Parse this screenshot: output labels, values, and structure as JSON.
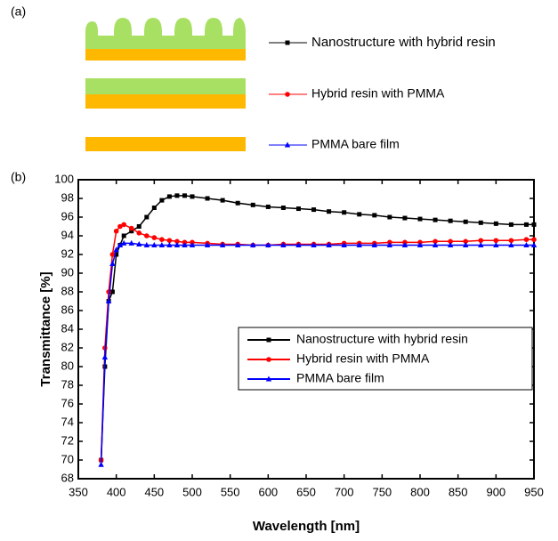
{
  "panel_labels": [
    "(a)",
    "(b)"
  ],
  "chart_data": {
    "type": "line",
    "xlabel": "Wavelength [nm]",
    "ylabel": "Transmittance [%]",
    "x": [
      380,
      385,
      390,
      395,
      400,
      405,
      410,
      420,
      430,
      440,
      450,
      460,
      470,
      480,
      490,
      500,
      520,
      540,
      560,
      580,
      600,
      620,
      640,
      660,
      680,
      700,
      720,
      740,
      760,
      780,
      800,
      820,
      840,
      860,
      880,
      900,
      920,
      940,
      950
    ],
    "series": [
      {
        "name": "Nanostructure with hybrid resin",
        "color": "#000000",
        "marker": "square",
        "values": [
          70,
          80,
          87,
          88,
          92,
          93,
          94,
          94.5,
          95,
          96,
          97,
          97.8,
          98.2,
          98.3,
          98.3,
          98.2,
          98,
          97.8,
          97.5,
          97.3,
          97.1,
          97,
          96.9,
          96.8,
          96.6,
          96.5,
          96.3,
          96.2,
          96,
          95.9,
          95.8,
          95.7,
          95.6,
          95.5,
          95.4,
          95.3,
          95.2,
          95.2,
          95.2
        ]
      },
      {
        "name": "Hybrid resin with PMMA",
        "color": "#ff0000",
        "marker": "circle",
        "values": [
          70,
          82,
          88,
          92,
          94.5,
          95,
          95.2,
          94.8,
          94.3,
          94,
          93.8,
          93.6,
          93.5,
          93.4,
          93.3,
          93.3,
          93.2,
          93.1,
          93.1,
          93,
          93,
          93.1,
          93.1,
          93.1,
          93.1,
          93.2,
          93.2,
          93.2,
          93.3,
          93.3,
          93.3,
          93.4,
          93.4,
          93.4,
          93.5,
          93.5,
          93.5,
          93.6,
          93.6
        ]
      },
      {
        "name": "PMMA bare film",
        "color": "#0000ff",
        "marker": "triangle",
        "values": [
          69.5,
          81,
          87,
          91,
          92.5,
          93,
          93.2,
          93.2,
          93.1,
          93,
          93,
          93,
          93,
          93,
          93,
          93,
          93,
          93,
          93,
          93,
          93,
          93,
          93,
          93,
          93,
          93,
          93,
          93,
          93,
          93,
          93,
          93,
          93,
          93,
          93,
          93,
          93,
          93,
          93
        ]
      }
    ],
    "xlim": [
      350,
      950
    ],
    "xticks": [
      350,
      400,
      450,
      500,
      550,
      600,
      650,
      700,
      750,
      800,
      850,
      900,
      950
    ],
    "ylim": [
      68,
      100
    ],
    "yticks": [
      68,
      70,
      72,
      74,
      76,
      78,
      80,
      82,
      84,
      86,
      88,
      90,
      92,
      94,
      96,
      98,
      100
    ]
  }
}
